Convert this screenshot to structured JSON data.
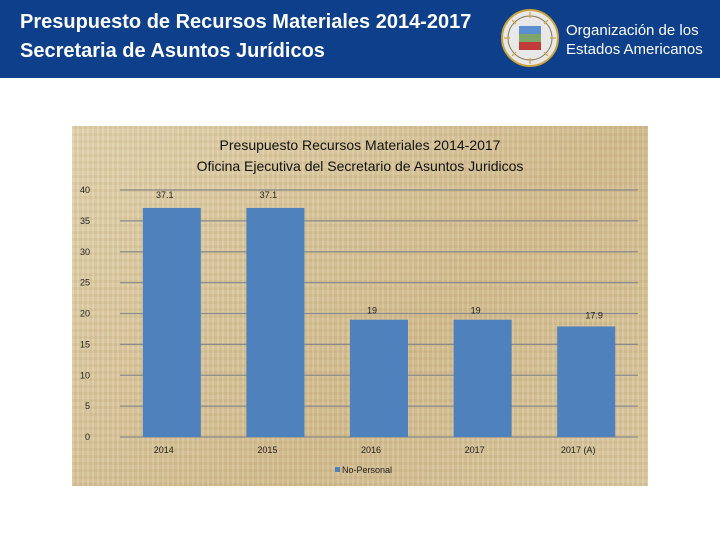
{
  "header": {
    "title_line1": "Presupuesto de Recursos Materiales 2014-2017",
    "title_line2": "Secretaria de Asuntos Jurídicos",
    "org_line1": "Organización de los",
    "org_line2": "Estados Americanos",
    "background": "#0d3f8a"
  },
  "seal": {
    "icon": "oas-seal-icon"
  },
  "chart_data": {
    "type": "bar",
    "title_line1": "Presupuesto Recursos Materiales 2014-2017",
    "title_line2": "Oficina Ejecutiva del Secretario de Asuntos Juridicos",
    "categories": [
      "2014",
      "2015",
      "2016",
      "2017",
      "2017 (A)"
    ],
    "series": [
      {
        "name": "No-Personal",
        "values": [
          37.1,
          37.1,
          19,
          19,
          17.9
        ],
        "color": "#4f81bd"
      }
    ],
    "data_labels": [
      "37.1",
      "37.1",
      "19",
      "19",
      "17.9"
    ],
    "yticks": [
      0,
      5,
      10,
      15,
      20,
      25,
      30,
      35,
      40
    ],
    "ylim": [
      0,
      40
    ],
    "grid": true,
    "legend": "bottom",
    "xlabel": "",
    "ylabel": ""
  }
}
